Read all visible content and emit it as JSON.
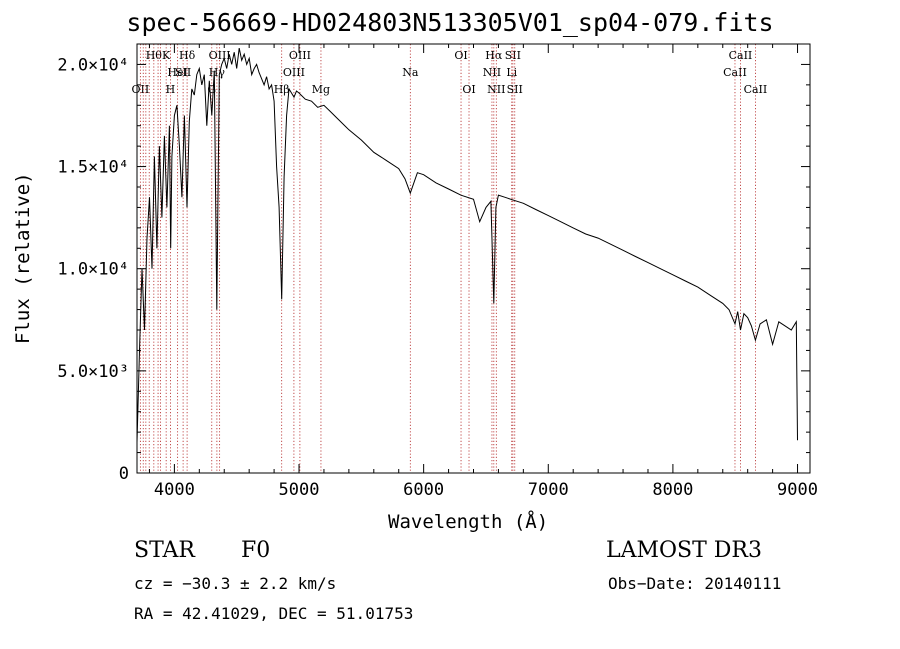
{
  "chart_data": {
    "type": "line",
    "title": "spec-56669-HD024803N513305V01_sp04-079.fits",
    "xlabel": "Wavelength (Å)",
    "ylabel": "Flux (relative)",
    "xlim": [
      3700,
      9100
    ],
    "ylim": [
      0,
      21000
    ],
    "x_ticks": [
      4000,
      5000,
      6000,
      7000,
      8000,
      9000
    ],
    "x_tick_labels": [
      "4000",
      "5000",
      "6000",
      "7000",
      "8000",
      "9000"
    ],
    "y_ticks": [
      0,
      5000,
      10000,
      15000,
      20000
    ],
    "y_tick_labels": [
      "0",
      "5.0×10³",
      "1.0×10⁴",
      "1.5×10⁴",
      "2.0×10⁴"
    ],
    "grid": false,
    "series": [
      {
        "x": [
          3700,
          3720,
          3740,
          3760,
          3780,
          3800,
          3820,
          3840,
          3860,
          3880,
          3900,
          3920,
          3940,
          3960,
          3970,
          3980,
          4000,
          4020,
          4040,
          4060,
          4080,
          4101,
          4120,
          4140,
          4160,
          4180,
          4200,
          4220,
          4240,
          4260,
          4280,
          4300,
          4320,
          4340,
          4360,
          4380,
          4400,
          4420,
          4440,
          4460,
          4480,
          4500,
          4520,
          4540,
          4560,
          4580,
          4600,
          4620,
          4640,
          4660,
          4680,
          4700,
          4720,
          4740,
          4760,
          4780,
          4800,
          4820,
          4840,
          4861,
          4880,
          4900,
          4920,
          4940,
          4960,
          4980,
          5000,
          5050,
          5100,
          5150,
          5200,
          5250,
          5300,
          5400,
          5500,
          5600,
          5700,
          5800,
          5850,
          5893,
          5950,
          6000,
          6100,
          6200,
          6300,
          6400,
          6450,
          6500,
          6540,
          6563,
          6580,
          6600,
          6650,
          6700,
          6800,
          6900,
          7000,
          7100,
          7200,
          7300,
          7400,
          7500,
          7600,
          7700,
          7800,
          7900,
          8000,
          8100,
          8200,
          8300,
          8400,
          8450,
          8498,
          8520,
          8542,
          8570,
          8600,
          8630,
          8662,
          8700,
          8750,
          8800,
          8850,
          8900,
          8950,
          8990,
          9000
        ],
        "y": [
          1500,
          6000,
          10000,
          7000,
          11500,
          13500,
          10000,
          15500,
          11000,
          16000,
          12500,
          16500,
          13000,
          17000,
          11000,
          15500,
          17500,
          18000,
          16000,
          13500,
          17500,
          13000,
          17200,
          18800,
          18500,
          19500,
          19800,
          19000,
          19500,
          17000,
          19200,
          17500,
          19700,
          8000,
          19500,
          20000,
          20300,
          19800,
          20500,
          20000,
          20600,
          19800,
          20800,
          20200,
          20500,
          20000,
          20300,
          19500,
          19800,
          20000,
          19600,
          19300,
          19000,
          19400,
          18800,
          19000,
          18200,
          15000,
          13000,
          8500,
          14500,
          17500,
          18800,
          18600,
          18400,
          18700,
          18600,
          18300,
          18200,
          17900,
          18000,
          17700,
          17400,
          16800,
          16300,
          15700,
          15300,
          14900,
          14400,
          13700,
          14700,
          14600,
          14200,
          13900,
          13600,
          13400,
          12300,
          13000,
          13300,
          8300,
          13000,
          13600,
          13500,
          13400,
          13200,
          12900,
          12600,
          12300,
          12000,
          11700,
          11500,
          11200,
          10900,
          10600,
          10300,
          10000,
          9700,
          9400,
          9100,
          8700,
          8300,
          8000,
          7300,
          7900,
          7000,
          7800,
          7600,
          7200,
          6500,
          7300,
          7500,
          6300,
          7400,
          7200,
          7000,
          7400,
          1600
        ]
      }
    ],
    "line_markers": [
      {
        "wavelength": 3727,
        "label": "OII",
        "row": 2
      },
      {
        "wavelength": 3750,
        "label": "",
        "row": 0
      },
      {
        "wavelength": 3771,
        "label": "",
        "row": 0
      },
      {
        "wavelength": 3798,
        "label": "",
        "row": 0
      },
      {
        "wavelength": 3835,
        "label": "Hθ",
        "row": 0
      },
      {
        "wavelength": 3869,
        "label": "",
        "row": 1
      },
      {
        "wavelength": 3889,
        "label": "",
        "row": 1
      },
      {
        "wavelength": 3934,
        "label": "K",
        "row": 0
      },
      {
        "wavelength": 3968,
        "label": "H",
        "row": 2
      },
      {
        "wavelength": 4026,
        "label": "HeI",
        "row": 1
      },
      {
        "wavelength": 4070,
        "label": "SII",
        "row": 1
      },
      {
        "wavelength": 4102,
        "label": "Hδ",
        "row": 0
      },
      {
        "wavelength": 4300,
        "label": "G",
        "row": 2
      },
      {
        "wavelength": 4341,
        "label": "Hγ",
        "row": 1
      },
      {
        "wavelength": 4363,
        "label": "OIII",
        "row": 0
      },
      {
        "wavelength": 4861,
        "label": "Hβ",
        "row": 2
      },
      {
        "wavelength": 4959,
        "label": "OIII",
        "row": 1
      },
      {
        "wavelength": 5007,
        "label": "OIII",
        "row": 0
      },
      {
        "wavelength": 5176,
        "label": "Mg",
        "row": 2
      },
      {
        "wavelength": 5893,
        "label": "Na",
        "row": 1
      },
      {
        "wavelength": 6300,
        "label": "OI",
        "row": 0
      },
      {
        "wavelength": 6364,
        "label": "OI",
        "row": 2
      },
      {
        "wavelength": 6548,
        "label": "NII",
        "row": 1
      },
      {
        "wavelength": 6563,
        "label": "Hα",
        "row": 0
      },
      {
        "wavelength": 6583,
        "label": "NII",
        "row": 2
      },
      {
        "wavelength": 6707,
        "label": "Li",
        "row": 1
      },
      {
        "wavelength": 6716,
        "label": "SII",
        "row": 0
      },
      {
        "wavelength": 6731,
        "label": "SII",
        "row": 2
      },
      {
        "wavelength": 8498,
        "label": "CaII",
        "row": 1
      },
      {
        "wavelength": 8542,
        "label": "CaII",
        "row": 0
      },
      {
        "wavelength": 8662,
        "label": "CaII",
        "row": 2
      }
    ],
    "colors": {
      "spectrum": "#000000",
      "line_markers": "#b22222",
      "axes": "#000000"
    }
  },
  "info": {
    "object_class": "STAR",
    "subclass": "F0",
    "survey": "LAMOST DR3",
    "cz": "cz = −30.3 ± 2.2 km/s",
    "obs_date": "Obs−Date: 20140111",
    "coords": "RA =  42.41029, DEC =  51.01753"
  }
}
